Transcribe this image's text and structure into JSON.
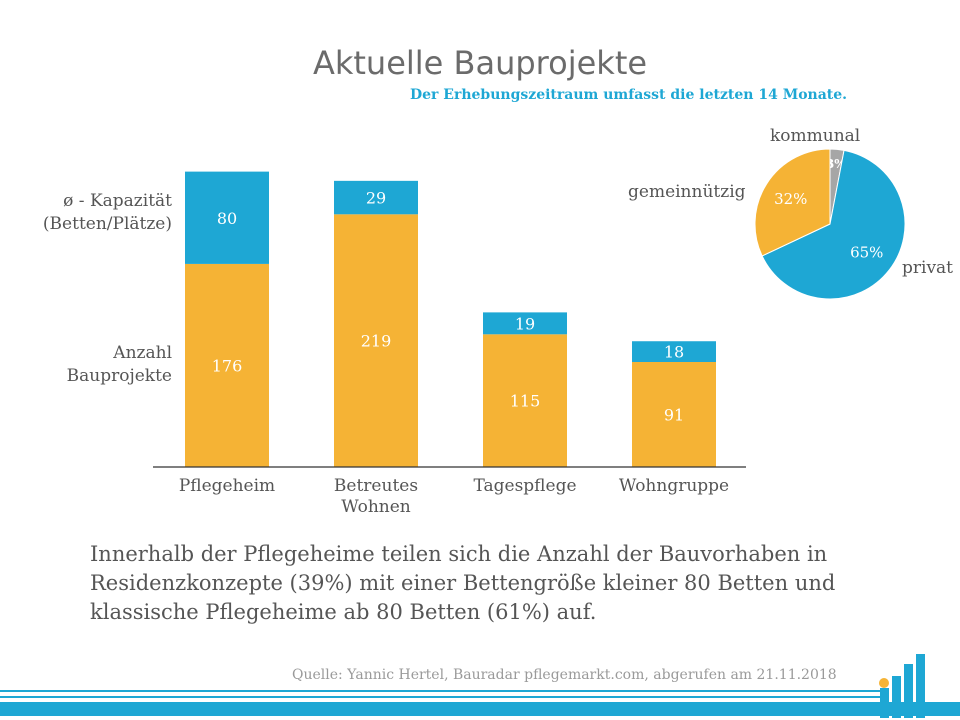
{
  "chart_data": [
    {
      "type": "bar",
      "stacked": true,
      "title": "Aktuelle Bauprojekte",
      "subtitle": "Der Erhebungszeitraum umfasst die letzten 14 Monate.",
      "categories": [
        "Pflegeheim",
        "Betreutes Wohnen",
        "Tagespflege",
        "Wohngruppe"
      ],
      "series": [
        {
          "name": "Anzahl Bauprojekte",
          "values": [
            176,
            219,
            115,
            91
          ],
          "color": "#f5b335"
        },
        {
          "name": "ø - Kapazität (Betten/Plätze)",
          "values": [
            80,
            29,
            19,
            18
          ],
          "color": "#1ea7d4"
        }
      ],
      "ylim": [
        0,
        260
      ],
      "grid": false,
      "legend": "left"
    },
    {
      "type": "pie",
      "labels": [
        "privat",
        "gemeinnützig",
        "kommunal"
      ],
      "values": [
        65,
        32,
        3
      ],
      "value_labels": [
        "65%",
        "32%",
        "3%"
      ],
      "colors": [
        "#1ea7d4",
        "#f5b335",
        "#a6a6a6"
      ]
    }
  ],
  "row_labels": {
    "top": [
      "ø - Kapazität",
      "(Betten/Plätze)"
    ],
    "bottom": [
      "Anzahl",
      "Bauprojekte"
    ]
  },
  "footnote": "Innerhalb der Pflegeheime teilen sich die Anzahl der Bauvorhaben in Residenzkonzepte (39%) mit einer Bettengröße kleiner 80 Betten und klassische Pflegeheime ab 80 Betten (61%) auf.",
  "source": "Quelle: Yannic Hertel, Bauradar pflegemarkt.com, abgerufen am 21.11.2018"
}
